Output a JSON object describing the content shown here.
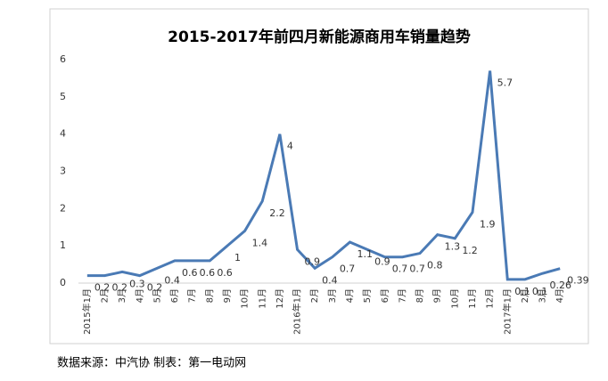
{
  "chart_data": {
    "type": "line",
    "title": "2015-2017年前四月新能源商用车销量趋势",
    "categories": [
      "2015年1月",
      "2月",
      "3月",
      "4月",
      "5月",
      "6月",
      "7月",
      "8月",
      "9月",
      "10月",
      "11月",
      "12月",
      "2016年1月",
      "2月",
      "3月",
      "4月",
      "5月",
      "6月",
      "7月",
      "8月",
      "9月",
      "10月",
      "11月",
      "12月",
      "2017年1月",
      "2月",
      "3月",
      "4月"
    ],
    "series": [
      {
        "name": "销量",
        "color": "#4a7ab5",
        "values": [
          0.2,
          0.2,
          0.3,
          0.2,
          0.4,
          0.6,
          0.6,
          0.6,
          1,
          1.4,
          2.2,
          4,
          0.9,
          0.4,
          0.7,
          1.1,
          0.9,
          0.7,
          0.7,
          0.8,
          1.3,
          1.2,
          1.9,
          5.7,
          0.1,
          0.1,
          0.26,
          0.39
        ]
      }
    ],
    "ylim": [
      0,
      6
    ],
    "yticks": [
      0,
      1,
      2,
      3,
      4,
      5,
      6
    ],
    "grid": false,
    "source": "数据来源：中汽协 制表：第一电动网"
  }
}
